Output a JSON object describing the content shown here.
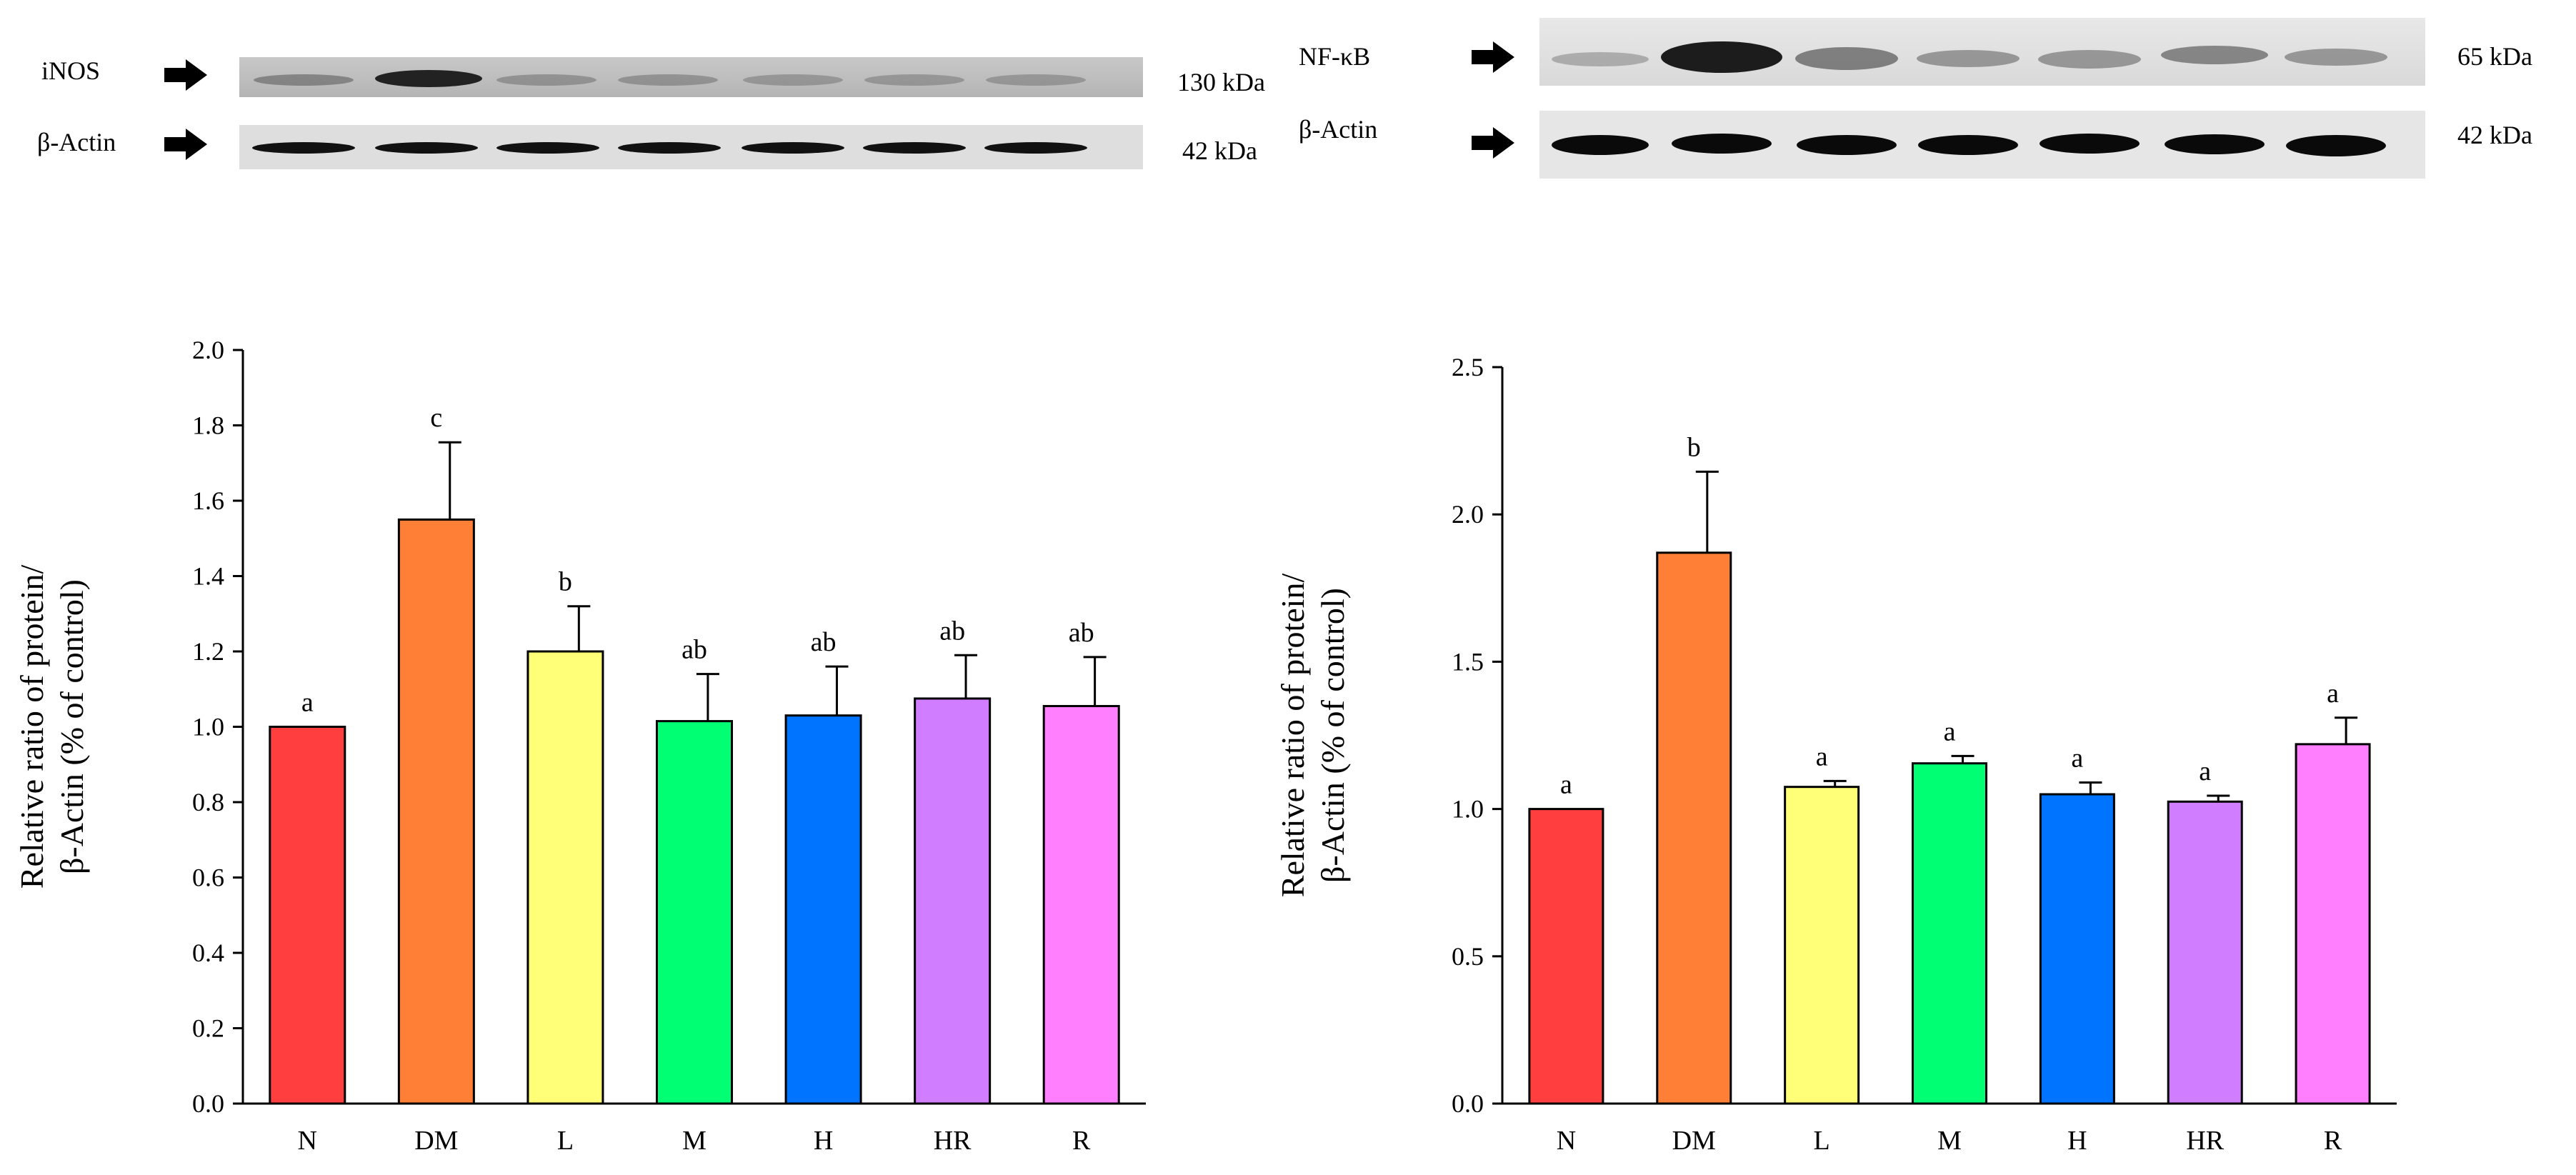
{
  "blots": {
    "left": {
      "target": {
        "label": "iNOS",
        "size": "130 kDa"
      },
      "control": {
        "label": "β-Actin",
        "size": "42 kDa"
      }
    },
    "right": {
      "target": {
        "label": "NF-κB",
        "size": "65 kDa"
      },
      "control": {
        "label": "β-Actin",
        "size": "42 kDa"
      }
    }
  },
  "chart_data": [
    {
      "type": "bar",
      "protein": "iNOS",
      "categories": [
        "N",
        "DM",
        "L",
        "M",
        "H",
        "HR",
        "R"
      ],
      "values": [
        1.0,
        1.55,
        1.2,
        1.015,
        1.03,
        1.075,
        1.055
      ],
      "errors": [
        0.0,
        0.205,
        0.12,
        0.125,
        0.13,
        0.115,
        0.13
      ],
      "significance": [
        "a",
        "c",
        "b",
        "ab",
        "ab",
        "ab",
        "ab"
      ],
      "colors": [
        "#ff3f3f",
        "#ff7f36",
        "#ffff78",
        "#00ff72",
        "#0074ff",
        "#d17dff",
        "#ff7fff"
      ],
      "ylabel_line1": "Relative ratio of protein/",
      "ylabel_line2": "β-Actin (% of control)",
      "xlabel": "",
      "ylim": [
        0,
        2.0
      ],
      "yticks": [
        "0.0",
        "0.2",
        "0.4",
        "0.6",
        "0.8",
        "1.0",
        "1.2",
        "1.4",
        "1.6",
        "1.8",
        "2.0"
      ],
      "grid": false
    },
    {
      "type": "bar",
      "protein": "NF-κB",
      "categories": [
        "N",
        "DM",
        "L",
        "M",
        "H",
        "HR",
        "R"
      ],
      "values": [
        1.0,
        1.87,
        1.075,
        1.155,
        1.05,
        1.025,
        1.22
      ],
      "errors": [
        0.0,
        0.275,
        0.02,
        0.025,
        0.04,
        0.02,
        0.09
      ],
      "significance": [
        "a",
        "b",
        "a",
        "a",
        "a",
        "a",
        "a"
      ],
      "colors": [
        "#ff3f3f",
        "#ff7f36",
        "#ffff78",
        "#00ff72",
        "#0074ff",
        "#d17dff",
        "#ff7fff"
      ],
      "ylabel_line1": "Relative ratio of protein/",
      "ylabel_line2": "β-Actin (% of control)",
      "xlabel": "",
      "ylim": [
        0,
        2.5
      ],
      "yticks": [
        "0.0",
        "0.5",
        "1.0",
        "1.5",
        "2.0",
        "2.5"
      ],
      "grid": false
    }
  ]
}
